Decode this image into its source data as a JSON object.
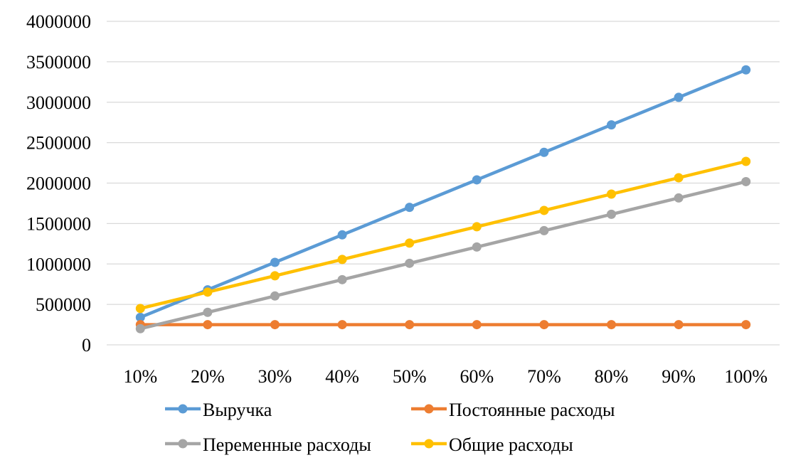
{
  "chart_data": {
    "type": "line",
    "title": "",
    "xlabel": "",
    "ylabel": "",
    "categories": [
      "10%",
      "20%",
      "30%",
      "40%",
      "50%",
      "60%",
      "70%",
      "80%",
      "90%",
      "100%"
    ],
    "ylim": [
      0,
      4000000
    ],
    "y_ticks": [
      "0",
      "500000",
      "1000000",
      "1500000",
      "2000000",
      "2500000",
      "3000000",
      "3500000",
      "4000000"
    ],
    "grid": true,
    "legend_position": "bottom",
    "series": [
      {
        "name": "Выручка",
        "color": "#5B9BD5",
        "values": [
          340000,
          680000,
          1020000,
          1360000,
          1700000,
          2040000,
          2380000,
          2720000,
          3060000,
          3400000
        ]
      },
      {
        "name": "Постоянные расходы",
        "color": "#ED7D31",
        "values": [
          250000,
          250000,
          250000,
          250000,
          250000,
          250000,
          250000,
          250000,
          250000,
          250000
        ]
      },
      {
        "name": "Переменные расходы",
        "color": "#A5A5A5",
        "values": [
          200000,
          402000,
          604000,
          806000,
          1008000,
          1210000,
          1412000,
          1614000,
          1816000,
          2018000
        ]
      },
      {
        "name": "Общие расходы",
        "color": "#FFC000",
        "values": [
          450000,
          652000,
          854000,
          1056000,
          1258000,
          1460000,
          1662000,
          1864000,
          2066000,
          2268000
        ]
      }
    ]
  }
}
